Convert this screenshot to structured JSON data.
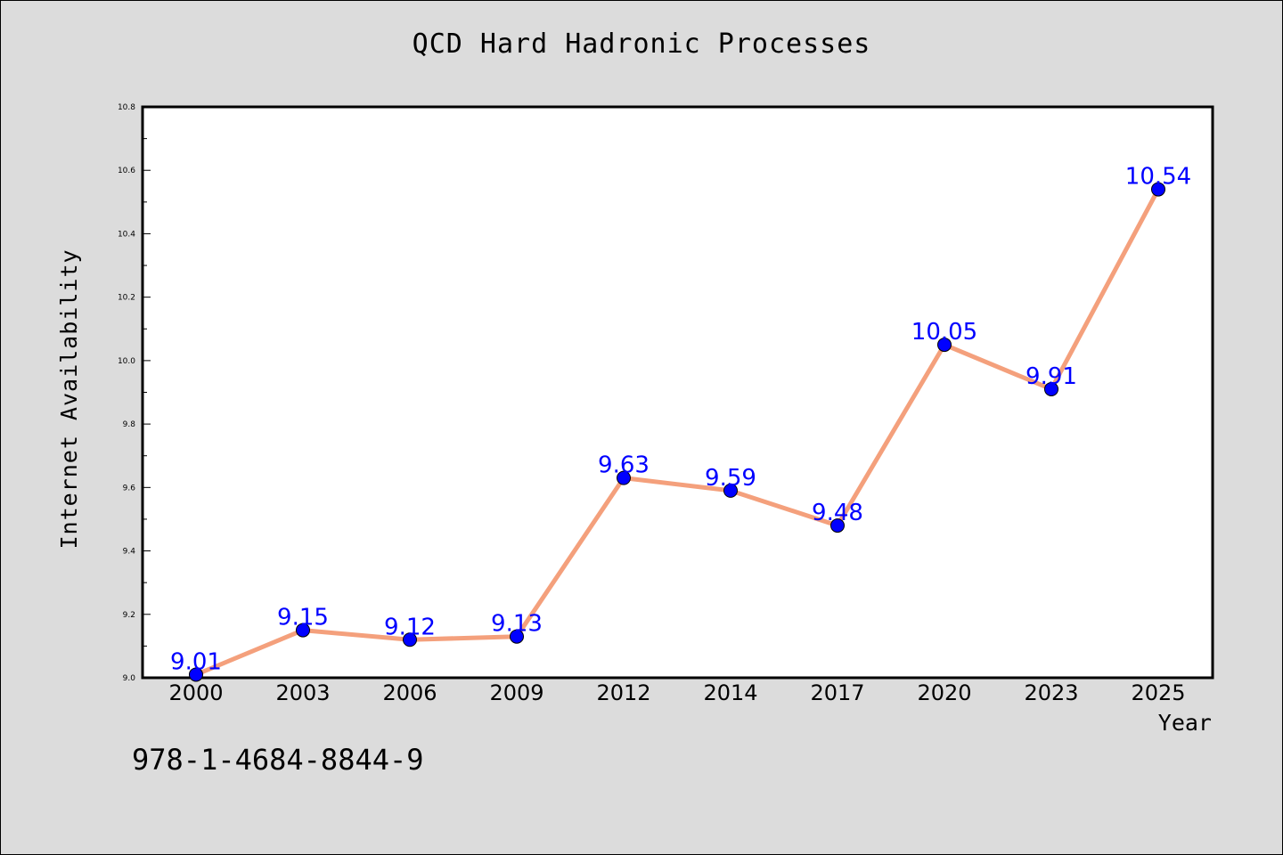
{
  "title": "QCD Hard Hadronic Processes",
  "footer_text": "978-1-4684-8844-9",
  "colors": {
    "background": "#dcdcdc",
    "plot_area": "#ffffff",
    "line": "#f4a07c",
    "marker": "#0000ff",
    "data_label": "#0000ff"
  },
  "chart_data": {
    "type": "line",
    "title": "QCD Hard Hadronic Processes",
    "xlabel": "Year",
    "ylabel": "Internet Availability",
    "categories": [
      "2000",
      "2003",
      "2006",
      "2009",
      "2012",
      "2014",
      "2017",
      "2020",
      "2023",
      "2025"
    ],
    "series": [
      {
        "values": [
          9.01,
          9.15,
          9.12,
          9.13,
          9.63,
          9.59,
          9.48,
          10.05,
          9.91,
          10.54
        ],
        "labels": [
          "9.01",
          "9.15",
          "9.12",
          "9.13",
          "9.63",
          "9.59",
          "9.48",
          "10.05",
          "9.91",
          "10.54"
        ]
      }
    ],
    "ylim": [
      9.0,
      10.8
    ],
    "yticks": [
      "9.0",
      "9.2",
      "9.4",
      "9.6",
      "9.8",
      "10.0",
      "10.2",
      "10.4",
      "10.6",
      "10.8"
    ],
    "grid": false,
    "legend": false
  }
}
